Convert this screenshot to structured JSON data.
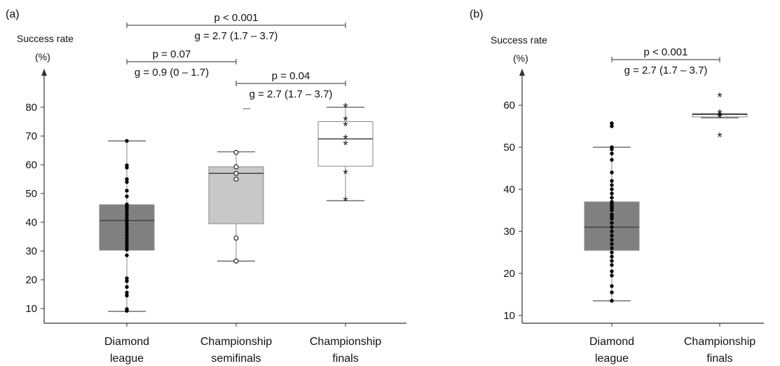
{
  "chart_data": [
    {
      "panel_label": "(a)",
      "type": "box",
      "ylabel_line1": "Success rate",
      "ylabel_line2": "(%)",
      "ylim": [
        5,
        85
      ],
      "yticks": [
        10,
        20,
        30,
        40,
        50,
        60,
        70,
        80
      ],
      "ytick_labels": [
        "10",
        "20",
        "30",
        "40",
        "50",
        "60",
        "70",
        "80"
      ],
      "categories": [
        "Diamond league",
        "Championship semifinals",
        "Championship finals"
      ],
      "category_lines": [
        [
          "Diamond",
          "league"
        ],
        [
          "Championship",
          "semifinals"
        ],
        [
          "Championship",
          "finals"
        ]
      ],
      "boxes": [
        {
          "whisker_low": 9,
          "q1": 30.3,
          "median": 40.6,
          "q3": 46.1,
          "whisker_high": 68.3,
          "fill": "#808080",
          "marker": "dot",
          "points": [
            9.2,
            9.8,
            14.5,
            15.5,
            17.5,
            19.5,
            20.5,
            28.5,
            30.5,
            31.5,
            32.5,
            33.5,
            34.5,
            35.5,
            36.5,
            37.5,
            38.5,
            39.5,
            40.5,
            41.5,
            42.5,
            43.5,
            44.5,
            45.2,
            45.7,
            46.2,
            49,
            51,
            54,
            55,
            59,
            59.8,
            68.3
          ]
        },
        {
          "whisker_low": 26.5,
          "q1": 39.5,
          "median": 57,
          "q3": 59.3,
          "whisker_high": 64.5,
          "fill": "#c8c8c8",
          "marker": "circle",
          "outlier": 79.5,
          "points": [
            26.5,
            34.5,
            55,
            57,
            59.3,
            64.3
          ]
        },
        {
          "whisker_low": 47.5,
          "q1": 59.5,
          "median": 69,
          "q3": 75,
          "whisker_high": 80,
          "fill": "#ffffff",
          "marker": "star",
          "points": [
            47.5,
            57,
            67,
            69,
            73.5,
            75.5,
            80
          ]
        }
      ],
      "comparisons": [
        {
          "from": 0,
          "to": 2,
          "line1": "p < 0.001",
          "line2": "g = 2.7 (1.7 – 3.7)"
        },
        {
          "from": 0,
          "to": 1,
          "line1": "p = 0.07",
          "line2": "g = 0.9 (0 – 1.7)"
        },
        {
          "from": 1,
          "to": 2,
          "line1": "p = 0.04",
          "line2": "g = 2.7 (1.7 – 3.7)"
        }
      ]
    },
    {
      "panel_label": "(b)",
      "type": "box",
      "ylabel_line1": "Success rate",
      "ylabel_line2": "(%)",
      "ylim": [
        8,
        68
      ],
      "yticks": [
        10,
        20,
        30,
        40,
        50,
        60
      ],
      "ytick_labels": [
        "10",
        "20",
        "30",
        "40",
        "50",
        "60"
      ],
      "categories": [
        "Diamond league",
        "Championship finals"
      ],
      "category_lines": [
        [
          "Diamond",
          "league"
        ],
        [
          "Championship",
          "finals"
        ]
      ],
      "boxes": [
        {
          "whisker_low": 13.5,
          "q1": 25.5,
          "median": 31,
          "q3": 37,
          "whisker_high": 50,
          "fill": "#808080",
          "marker": "dot",
          "points": [
            13.5,
            15.5,
            17,
            19.5,
            20.5,
            22,
            23,
            24,
            25,
            26,
            27,
            28,
            29,
            30,
            31,
            32,
            33,
            33.5,
            34,
            35,
            35.5,
            36,
            36.5,
            37,
            38,
            39,
            40,
            41,
            42,
            44,
            47,
            48.5,
            49.5,
            50,
            55,
            55.7
          ]
        },
        {
          "whisker_low": 57,
          "q1": 57.2,
          "median": 57.8,
          "q3": 58,
          "whisker_high": 58,
          "fill": "#ffffff",
          "marker": "star",
          "points": [
            52.5,
            57,
            57.5,
            58,
            62
          ]
        }
      ],
      "comparisons": [
        {
          "from": 0,
          "to": 1,
          "line1": "p < 0.001",
          "line2": "g = 2.7 (1.7 – 3.7)"
        }
      ]
    }
  ]
}
